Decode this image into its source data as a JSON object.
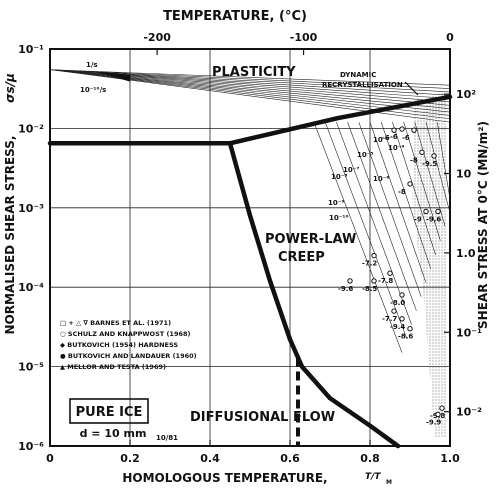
{
  "chart_data": {
    "type": "line",
    "title": "PURE ICE",
    "subtitle": "d = 10 mm",
    "figure_code": "10/81",
    "xlabel": "HOMOLOGOUS TEMPERATURE,",
    "xlabel_unit": "T/T",
    "xlabel_unit_sub": "M",
    "top_xlabel": "TEMPERATURE, (°C)",
    "ylabel": "NORMALISED SHEAR STRESS,",
    "ylabel_symbol": "σs/μ",
    "right_ylabel": "SHEAR STRESS AT 0°C (MN/m²)",
    "xlim": [
      0,
      1
    ],
    "ylim": [
      1e-06,
      0.1
    ],
    "ylog": true,
    "x_ticks": [
      "0",
      "0.2",
      "0.4",
      "0.6",
      "0.8",
      "1.0"
    ],
    "x_tick_values": [
      0,
      0.2,
      0.4,
      0.6,
      0.8,
      1.0
    ],
    "y_ticks": [
      "10⁻⁶",
      "10⁻⁵",
      "10⁻⁴",
      "10⁻³",
      "10⁻²",
      "10⁻¹"
    ],
    "y_tick_values": [
      1e-06,
      1e-05,
      0.0001,
      0.001,
      0.01,
      0.1
    ],
    "top_ticks": [
      "-200",
      "-100",
      "0"
    ],
    "top_tick_values": [
      -200,
      -100,
      0
    ],
    "right_ticks": [
      "10²",
      "10",
      "1.0",
      "10⁻¹",
      "10⁻²"
    ],
    "right_tick_values": [
      100,
      10,
      1,
      0.1,
      0.01
    ],
    "regions": [
      "PLASTICITY",
      "POWER-LAW",
      "CREEP",
      "DIFFUSIONAL FLOW"
    ],
    "annotations": [
      "DYNAMIC",
      "RECRYSTALLISATION",
      "1/s",
      "10⁻¹⁰/s",
      "10⁻⁶",
      "10⁻⁸",
      "10⁻⁷",
      "10⁻⁴",
      "10⁻⁵",
      "10⁻⁶",
      "10⁻⁹",
      "10⁻¹⁰"
    ],
    "boundaries": [
      {
        "name": "plasticity",
        "x": [
          0,
          0.45,
          0.72,
          1.0
        ],
        "y": [
          0.0065,
          0.0065,
          0.0135,
          0.025
        ]
      },
      {
        "name": "power-law / diffusional",
        "x": [
          0.45,
          0.5,
          0.55,
          0.6,
          0.63,
          0.7,
          0.8,
          0.87
        ],
        "y": [
          0.0065,
          0.0008,
          0.00012,
          2.2e-05,
          1e-05,
          4e-06,
          1.8e-06,
          1e-06
        ]
      }
    ],
    "strain_rate_contours": [
      {
        "label": "1/s",
        "x": [
          0,
          1.0
        ],
        "y": [
          0.055,
          0.035
        ]
      },
      {
        "label": "10⁻¹⁰/s",
        "x": [
          0,
          1.0
        ],
        "y": [
          0.055,
          0.012
        ]
      }
    ],
    "legend": [
      "□ + △ ∇ BARNES ET AL. (1971)",
      "○ SCHULZ AND KNAPPWOST (1968)",
      "◆ BUTKOVICH (1954) HARDNESS",
      "● BUTKOVICH AND LANDAUER (1960)",
      "▲ MELLOR AND TESTA (1969)"
    ],
    "data_labels": [
      "-6",
      "-6",
      "-6",
      "-8",
      "-9.5",
      "-8",
      "-9",
      "-9.6",
      "-7.2",
      "-7.8",
      "-9.6",
      "-8.5",
      "-8.0",
      "-7.7",
      "-9.4",
      "-8.6",
      "-9.8",
      "-9.9"
    ],
    "grid": true,
    "legend_position": "left-middle"
  }
}
